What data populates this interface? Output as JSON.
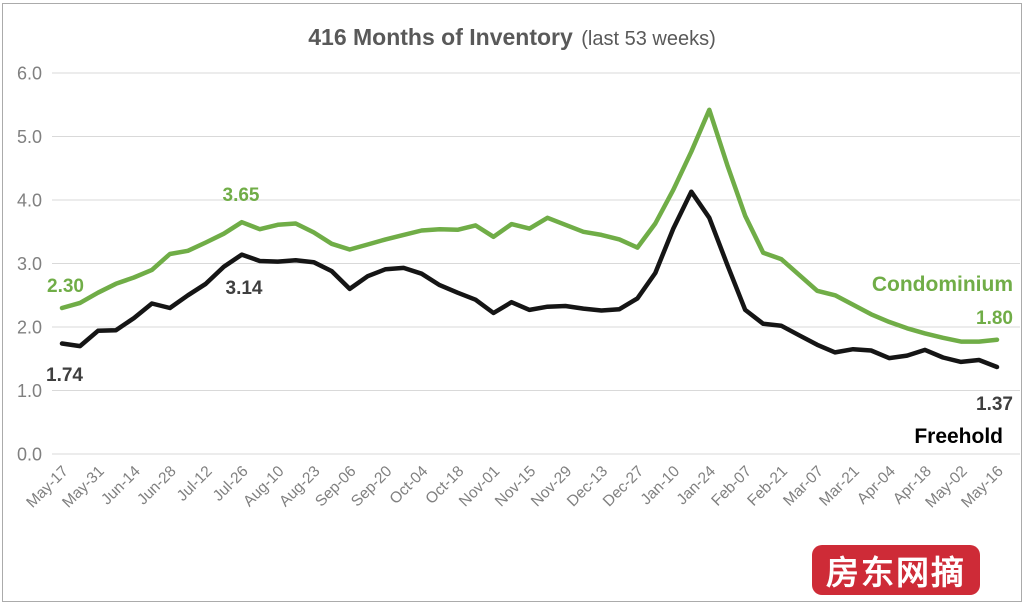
{
  "title": {
    "main": "416 Months of Inventory",
    "suffix": "(last 53 weeks)"
  },
  "watermark": {
    "text": "房东网摘",
    "background": "#CE2B37",
    "foreground": "#FFFFFF"
  },
  "chart_data": {
    "type": "line",
    "title": "416 Months of Inventory",
    "subtitle": "(last 53 weeks)",
    "xlabel": "",
    "ylabel": "",
    "ylim": [
      0,
      6
    ],
    "y_ticks": [
      "6.0",
      "5.0",
      "4.0",
      "3.0",
      "2.0",
      "1.0",
      "0.0"
    ],
    "grid": true,
    "legend_position": "inline-right",
    "n_points": 53,
    "x_tick_every_n_points": 2,
    "x_tick_labels": [
      "May-17",
      "May-31",
      "Jun-14",
      "Jun-28",
      "Jul-12",
      "Jul-26",
      "Aug-10",
      "Aug-23",
      "Sep-06",
      "Sep-20",
      "Oct-04",
      "Oct-18",
      "Nov-01",
      "Nov-15",
      "Nov-29",
      "Dec-13",
      "Dec-27",
      "Jan-10",
      "Jan-24",
      "Feb-07",
      "Feb-21",
      "Mar-07",
      "Mar-21",
      "Apr-04",
      "Apr-18",
      "May-02",
      "May-16"
    ],
    "series": [
      {
        "name": "Condominium",
        "color": "#70AD47",
        "values": [
          2.3,
          2.38,
          2.54,
          2.68,
          2.78,
          2.9,
          3.15,
          3.2,
          3.33,
          3.47,
          3.65,
          3.54,
          3.61,
          3.63,
          3.49,
          3.31,
          3.22,
          3.3,
          3.38,
          3.45,
          3.52,
          3.54,
          3.53,
          3.6,
          3.42,
          3.62,
          3.55,
          3.72,
          3.61,
          3.5,
          3.45,
          3.38,
          3.25,
          3.63,
          4.16,
          4.76,
          5.42,
          4.55,
          3.75,
          3.17,
          3.07,
          2.82,
          2.57,
          2.5,
          2.35,
          2.2,
          2.08,
          1.98,
          1.9,
          1.83,
          1.77,
          1.77,
          1.8
        ]
      },
      {
        "name": "Freehold",
        "color": "#151515",
        "values": [
          1.74,
          1.7,
          1.94,
          1.95,
          2.14,
          2.37,
          2.3,
          2.5,
          2.68,
          2.95,
          3.14,
          3.04,
          3.03,
          3.05,
          3.02,
          2.88,
          2.6,
          2.8,
          2.91,
          2.93,
          2.84,
          2.66,
          2.54,
          2.43,
          2.22,
          2.39,
          2.27,
          2.32,
          2.33,
          2.29,
          2.26,
          2.28,
          2.45,
          2.85,
          3.55,
          4.13,
          3.72,
          2.98,
          2.27,
          2.05,
          2.02,
          1.87,
          1.72,
          1.6,
          1.65,
          1.63,
          1.51,
          1.55,
          1.64,
          1.52,
          1.45,
          1.48,
          1.37
        ]
      }
    ],
    "annotations": [
      {
        "series": "Condominium",
        "point_index": 0,
        "text": "2.30"
      },
      {
        "series": "Freehold",
        "point_index": 0,
        "text": "1.74"
      },
      {
        "series": "Condominium",
        "point_index": 10,
        "text": "3.65"
      },
      {
        "series": "Freehold",
        "point_index": 10,
        "text": "3.14"
      },
      {
        "series": "Condominium",
        "point_index": 52,
        "text": "1.80"
      },
      {
        "series": "Freehold",
        "point_index": 52,
        "text": "1.37"
      }
    ]
  }
}
